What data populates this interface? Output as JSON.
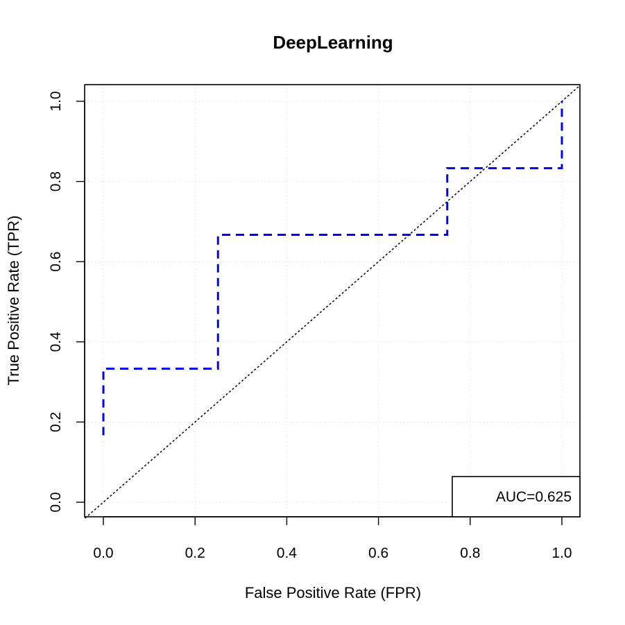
{
  "chart_data": {
    "type": "line",
    "title": "DeepLearning",
    "xlabel": "False Positive Rate (FPR)",
    "ylabel": "True Positive Rate (TPR)",
    "xlim": [
      0,
      1
    ],
    "ylim": [
      0,
      1
    ],
    "xticks": [
      "0.0",
      "0.2",
      "0.4",
      "0.6",
      "0.8",
      "1.0"
    ],
    "yticks": [
      "0.0",
      "0.2",
      "0.4",
      "0.6",
      "0.8",
      "1.0"
    ],
    "grid": true,
    "series": [
      {
        "x": [
          0,
          0,
          0.25,
          0.25,
          0.75,
          0.75,
          1,
          1
        ],
        "y": [
          0.167,
          0.333,
          0.333,
          0.667,
          0.667,
          0.833,
          0.833,
          1
        ],
        "color": "#0000ff",
        "style": "dashed"
      }
    ],
    "reference_line": {
      "x": [
        0,
        1
      ],
      "y": [
        0,
        1
      ],
      "color": "#000000",
      "style": "dotted"
    },
    "annotation": {
      "text": "AUC=0.625",
      "placement": "bottom-right"
    }
  }
}
